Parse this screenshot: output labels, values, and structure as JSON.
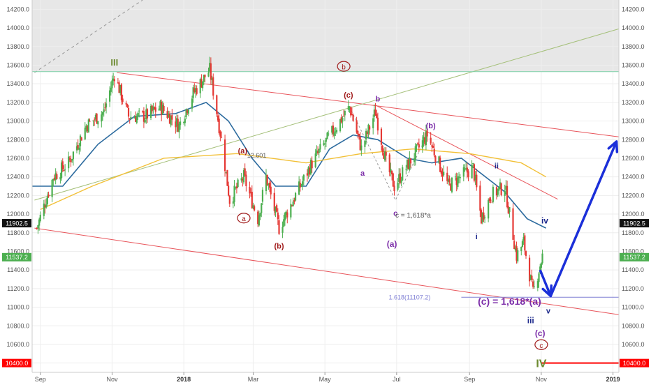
{
  "colors": {
    "background": "#ffffff",
    "shaded_zone": "#e7e7e7",
    "grid": "#eeeeee",
    "candle_up": "#4caf50",
    "candle_down": "#e53935",
    "ma_short": "#2b6a9e",
    "ma_long": "#f2c037",
    "channel": "#e8545a",
    "trendline": "#a5c07a",
    "green_level": "#7cd1a7",
    "dashed": "#999999",
    "fib_line": "#7e7ed4",
    "projection": "#1b2fd9",
    "red_level": "#ff0000",
    "wave_red": "#a01a1a",
    "wave_purple": "#7b2ca8",
    "wave_navy": "#1e2a8c",
    "wave_green": "#6c8a2f",
    "axis_text": "#555555"
  },
  "chart_data": {
    "type": "candlestick",
    "y_axis": {
      "side": "both",
      "range": [
        10300,
        14300
      ],
      "ticks": [
        "10400.0",
        "10600.0",
        "10800.0",
        "11000.0",
        "11200.0",
        "11400.0",
        "11600.0",
        "11800.0",
        "12000.0",
        "12200.0",
        "12400.0",
        "12600.0",
        "12800.0",
        "13000.0",
        "13200.0",
        "13400.0",
        "13600.0",
        "13800.0",
        "14000.0",
        "14200.0"
      ]
    },
    "x_axis": {
      "range": [
        "2017-08-25",
        "2019-01-06"
      ],
      "ticks": [
        {
          "label": "Sep",
          "date": "2017-09-01"
        },
        {
          "label": "Nov",
          "date": "2017-11-01"
        },
        {
          "label": "2018",
          "date": "2018-01-01"
        },
        {
          "label": "Mar",
          "date": "2018-03-01"
        },
        {
          "label": "May",
          "date": "2018-05-01"
        },
        {
          "label": "Jul",
          "date": "2018-07-01"
        },
        {
          "label": "Sep",
          "date": "2018-09-01"
        },
        {
          "label": "Nov",
          "date": "2018-11-01"
        },
        {
          "label": "2019",
          "date": "2019-01-01"
        }
      ]
    },
    "price_pivots": [
      {
        "date": "2017-08-29",
        "price": 11850
      },
      {
        "date": "2017-09-12",
        "price": 12400
      },
      {
        "date": "2017-09-25",
        "price": 12550
      },
      {
        "date": "2017-10-10",
        "price": 12950
      },
      {
        "date": "2017-10-25",
        "price": 13100
      },
      {
        "date": "2017-11-03",
        "price": 13500
      },
      {
        "date": "2017-11-15",
        "price": 13050
      },
      {
        "date": "2017-11-29",
        "price": 13050
      },
      {
        "date": "2017-12-12",
        "price": 13150
      },
      {
        "date": "2017-12-28",
        "price": 12950
      },
      {
        "date": "2018-01-09",
        "price": 13300
      },
      {
        "date": "2018-01-23",
        "price": 13550
      },
      {
        "date": "2018-02-02",
        "price": 12800
      },
      {
        "date": "2018-02-09",
        "price": 12150
      },
      {
        "date": "2018-02-21",
        "price": 12400
      },
      {
        "date": "2018-03-05",
        "price": 11950
      },
      {
        "date": "2018-03-12",
        "price": 12400
      },
      {
        "date": "2018-03-23",
        "price": 11850
      },
      {
        "date": "2018-04-06",
        "price": 12200
      },
      {
        "date": "2018-04-20",
        "price": 12550
      },
      {
        "date": "2018-05-03",
        "price": 12800
      },
      {
        "date": "2018-05-22",
        "price": 13150
      },
      {
        "date": "2018-06-01",
        "price": 12700
      },
      {
        "date": "2018-06-13",
        "price": 13100
      },
      {
        "date": "2018-06-22",
        "price": 12550
      },
      {
        "date": "2018-06-29",
        "price": 12300
      },
      {
        "date": "2018-07-09",
        "price": 12500
      },
      {
        "date": "2018-07-27",
        "price": 12850
      },
      {
        "date": "2018-08-14",
        "price": 12300
      },
      {
        "date": "2018-08-24",
        "price": 12400
      },
      {
        "date": "2018-09-04",
        "price": 12500
      },
      {
        "date": "2018-09-11",
        "price": 11950
      },
      {
        "date": "2018-09-19",
        "price": 12200
      },
      {
        "date": "2018-10-01",
        "price": 12300
      },
      {
        "date": "2018-10-11",
        "price": 11550
      },
      {
        "date": "2018-10-17",
        "price": 11700
      },
      {
        "date": "2018-10-25",
        "price": 11150
      },
      {
        "date": "2018-10-31",
        "price": 11450
      },
      {
        "date": "2018-11-02",
        "price": 11550
      }
    ],
    "series": [
      {
        "style": "ma_short",
        "points": [
          {
            "date": "2017-08-25",
            "price": 12300
          },
          {
            "date": "2017-09-20",
            "price": 12300
          },
          {
            "date": "2017-10-20",
            "price": 12750
          },
          {
            "date": "2017-11-20",
            "price": 13050
          },
          {
            "date": "2017-12-25",
            "price": 13080
          },
          {
            "date": "2018-01-20",
            "price": 13200
          },
          {
            "date": "2018-02-08",
            "price": 13000
          },
          {
            "date": "2018-02-28",
            "price": 12600
          },
          {
            "date": "2018-03-20",
            "price": 12300
          },
          {
            "date": "2018-04-15",
            "price": 12300
          },
          {
            "date": "2018-05-05",
            "price": 12700
          },
          {
            "date": "2018-05-25",
            "price": 12850
          },
          {
            "date": "2018-06-15",
            "price": 12800
          },
          {
            "date": "2018-07-10",
            "price": 12600
          },
          {
            "date": "2018-07-31",
            "price": 12550
          },
          {
            "date": "2018-08-25",
            "price": 12600
          },
          {
            "date": "2018-09-30",
            "price": 12250
          },
          {
            "date": "2018-10-20",
            "price": 11950
          },
          {
            "date": "2018-11-05",
            "price": 11850
          }
        ]
      },
      {
        "style": "ma_long",
        "points": [
          {
            "date": "2017-09-01",
            "price": 12050
          },
          {
            "date": "2017-10-15",
            "price": 12300
          },
          {
            "date": "2017-12-15",
            "price": 12600
          },
          {
            "date": "2018-02-15",
            "price": 12650
          },
          {
            "date": "2018-04-15",
            "price": 12550
          },
          {
            "date": "2018-06-01",
            "price": 12650
          },
          {
            "date": "2018-07-15",
            "price": 12700
          },
          {
            "date": "2018-09-01",
            "price": 12650
          },
          {
            "date": "2018-10-15",
            "price": 12550
          },
          {
            "date": "2018-11-05",
            "price": 12400
          }
        ]
      }
    ],
    "channel_lines": [
      {
        "style": "channel",
        "from": {
          "date": "2017-11-05",
          "price": 13520
        },
        "to": {
          "date": "2019-01-06",
          "price": 12830
        }
      },
      {
        "style": "channel",
        "from": {
          "date": "2017-08-27",
          "price": 11850
        },
        "to": {
          "date": "2019-01-06",
          "price": 10920
        }
      },
      {
        "style": "channel",
        "from": {
          "date": "2018-06-13",
          "price": 13170
        },
        "to": {
          "date": "2018-11-15",
          "price": 12160
        }
      },
      {
        "style": "trendline",
        "from": {
          "date": "2017-08-27",
          "price": 12150
        },
        "to": {
          "date": "2019-01-06",
          "price": 13990
        }
      },
      {
        "style": "green_level",
        "from": {
          "date": "2017-08-25",
          "price": 13530
        },
        "to": {
          "date": "2019-01-06",
          "price": 13530
        }
      },
      {
        "style": "fib_line",
        "from": {
          "date": "2018-08-25",
          "price": 11107
        },
        "to": {
          "date": "2019-01-06",
          "price": 11107
        }
      },
      {
        "style": "red_level",
        "from": {
          "date": "2018-11-01",
          "price": 10400
        },
        "to": {
          "date": "2019-01-06",
          "price": 10400
        }
      }
    ],
    "projection": [
      {
        "date": "2018-10-31",
        "price": 11400
      },
      {
        "date": "2018-11-09",
        "price": 11120
      },
      {
        "date": "2019-01-04",
        "price": 12780
      }
    ],
    "shaded_zone": {
      "price_from": 13530,
      "price_to": 14300
    },
    "annotations": [
      {
        "text": "III",
        "date": "2017-11-03",
        "price": 13630,
        "color": "wave_green",
        "size": 13
      },
      {
        "text": "b",
        "date": "2018-05-17",
        "price": 13580,
        "color": "wave_red",
        "circled": true,
        "size": 10
      },
      {
        "text": "(c)",
        "date": "2018-05-21",
        "price": 13280,
        "color": "wave_red",
        "size": 11
      },
      {
        "text": "b",
        "date": "2018-06-15",
        "price": 13240,
        "color": "wave_purple",
        "size": 11
      },
      {
        "text": "(b)",
        "date": "2018-07-30",
        "price": 12950,
        "color": "wave_purple",
        "size": 11
      },
      {
        "text": "(a)",
        "date": "2018-02-20",
        "price": 12680,
        "color": "wave_red",
        "size": 11
      },
      {
        "text": "12.601",
        "date": "2018-03-04",
        "price": 12630,
        "color": "axis_text",
        "size": 9
      },
      {
        "text": "a",
        "date": "2018-06-02",
        "price": 12440,
        "color": "wave_purple",
        "size": 11
      },
      {
        "text": "ii",
        "date": "2018-09-24",
        "price": 12520,
        "color": "wave_navy",
        "size": 11
      },
      {
        "text": "a",
        "date": "2018-02-21",
        "price": 11950,
        "color": "wave_red",
        "circled": true,
        "size": 10
      },
      {
        "text": "(b)",
        "date": "2018-03-23",
        "price": 11660,
        "color": "wave_red",
        "size": 11
      },
      {
        "text": "c",
        "date": "2018-06-30",
        "price": 12010,
        "color": "wave_purple",
        "size": 11
      },
      {
        "text": "c = 1,618*a",
        "date": "2018-07-15",
        "price": 11990,
        "color": "axis_text",
        "size": 10
      },
      {
        "text": "iv",
        "date": "2018-11-04",
        "price": 11930,
        "color": "wave_navy",
        "size": 12
      },
      {
        "text": "i",
        "date": "2018-09-07",
        "price": 11760,
        "color": "wave_navy",
        "size": 11
      },
      {
        "text": "(a)",
        "date": "2018-06-27",
        "price": 11680,
        "color": "wave_purple",
        "size": 12
      },
      {
        "text": "1.618(11107.2)",
        "date": "2018-07-12",
        "price": 11107,
        "color": "fib_line",
        "size": 9
      },
      {
        "text": "(c) = 1,618*(a)",
        "date": "2018-10-05",
        "price": 11065,
        "color": "wave_purple",
        "size": 14
      },
      {
        "text": "v",
        "date": "2018-11-07",
        "price": 10960,
        "color": "wave_navy",
        "size": 11
      },
      {
        "text": "iii",
        "date": "2018-10-23",
        "price": 10860,
        "color": "wave_navy",
        "size": 12
      },
      {
        "text": "(c)",
        "date": "2018-10-31",
        "price": 10720,
        "color": "wave_purple",
        "size": 12
      },
      {
        "text": "c",
        "date": "2018-11-01",
        "price": 10590,
        "color": "wave_red",
        "circled": true,
        "size": 10
      },
      {
        "text": "IV",
        "date": "2018-11-01",
        "price": 10400,
        "color": "wave_green",
        "size": 16
      }
    ],
    "price_badges": [
      {
        "text": "11902.5",
        "price": 11902.5,
        "side": "right",
        "bg": "#111111"
      },
      {
        "text": "11537.2",
        "price": 11537.2,
        "side": "right",
        "bg": "#4caf50"
      },
      {
        "text": "10400.0",
        "price": 10400,
        "side": "right",
        "bg": "#ff0000"
      },
      {
        "text": "11902.5",
        "price": 11902.5,
        "side": "left",
        "bg": "#111111"
      },
      {
        "text": "11537.2",
        "price": 11537.2,
        "side": "left",
        "bg": "#4caf50"
      },
      {
        "text": "10400.0",
        "price": 10400,
        "side": "left",
        "bg": "#ff0000"
      }
    ]
  }
}
